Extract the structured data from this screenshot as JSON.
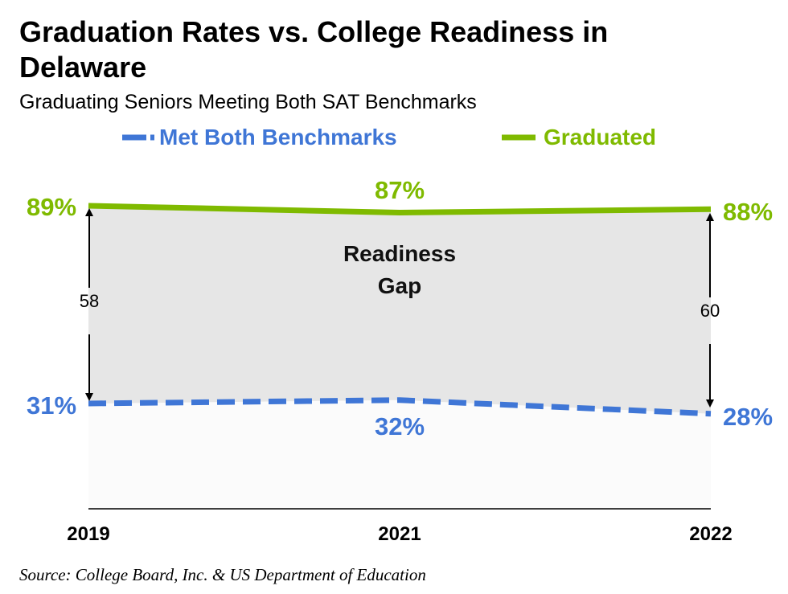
{
  "title": "Graduation Rates vs. College Readiness in Delaware",
  "subtitle": "Graduating Seniors Meeting Both SAT Benchmarks",
  "source": "Source: College Board, Inc. & US Department of Education",
  "colors": {
    "benchmarks": "#3f76d6",
    "graduated": "#7fba00",
    "gap_fill": "#e6e6e6",
    "below_fill": "#fbfbfb"
  },
  "chart_data": {
    "type": "line",
    "categories": [
      "2019",
      "2021",
      "2022"
    ],
    "series": [
      {
        "name": "Met Both Benchmarks",
        "values": [
          31,
          32,
          28
        ],
        "labels": [
          "31%",
          "32%",
          "28%"
        ],
        "style": "dashed"
      },
      {
        "name": "Graduated",
        "values": [
          89,
          87,
          88
        ],
        "labels": [
          "89%",
          "87%",
          "88%"
        ],
        "style": "solid"
      }
    ],
    "gap_label_lines": [
      "Readiness",
      "Gap"
    ],
    "gap_annotations": [
      {
        "category": "2019",
        "value": "58"
      },
      {
        "category": "2022",
        "value": "60"
      }
    ],
    "legend_position": "top",
    "grid": false
  }
}
